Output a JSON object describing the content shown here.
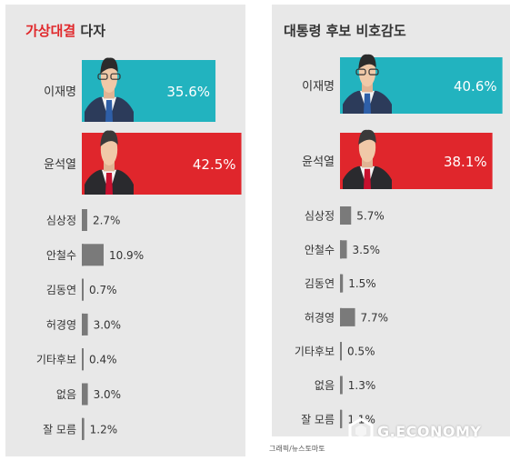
{
  "source": "그래픽/뉴스토마토",
  "watermark": "G.ECONOMY",
  "colors": {
    "lee": "#22b3bf",
    "yoon": "#e0262c",
    "minor": "#7a7a7a",
    "label": "#333333",
    "value_on_bar": "#ffffff"
  },
  "chart_data": [
    {
      "type": "bar",
      "title_accent": "가상대결",
      "title_rest": " 다자",
      "categories": [
        "이재명",
        "윤석열",
        "심상정",
        "안철수",
        "김동연",
        "허경영",
        "기타후보",
        "없음",
        "잘 모름"
      ],
      "values": [
        35.6,
        42.5,
        2.7,
        10.9,
        0.7,
        3.0,
        0.4,
        3.0,
        1.2
      ],
      "value_labels": [
        "35.6%",
        "42.5%",
        "2.7%",
        "10.9%",
        "0.7%",
        "3.0%",
        "0.4%",
        "3.0%",
        "1.2%"
      ],
      "unit": "%"
    },
    {
      "type": "bar",
      "title": "대통령 후보 비호감도",
      "categories": [
        "이재명",
        "윤석열",
        "심상정",
        "안철수",
        "김동연",
        "허경영",
        "기타후보",
        "없음",
        "잘 모름"
      ],
      "values": [
        40.6,
        38.1,
        5.7,
        3.5,
        1.5,
        7.7,
        0.5,
        1.3,
        1.1
      ],
      "value_labels": [
        "40.6%",
        "38.1%",
        "5.7%",
        "3.5%",
        "1.5%",
        "7.7%",
        "0.5%",
        "1.3%",
        "1.1%"
      ],
      "unit": "%"
    }
  ]
}
